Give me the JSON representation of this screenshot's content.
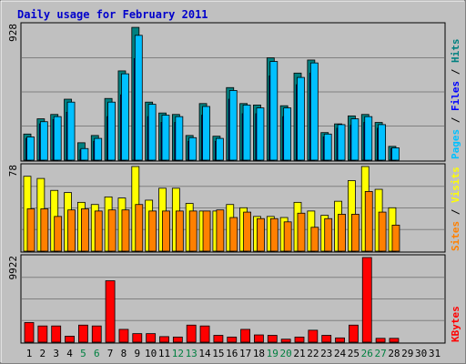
{
  "title": "Daily usage for February 2011",
  "colors": {
    "title": "#0000cc",
    "background": "#c0c0c0",
    "border_dark": "#808080",
    "grid": "#808080",
    "hits_fill": "#008080",
    "files_fill": "#0000ff",
    "pages_fill": "#00c0ff",
    "visits_fill": "#ffff00",
    "sites_fill": "#ff8000",
    "kbytes_fill": "#ff0000",
    "weekend_label": "#008040",
    "weekday_label": "#000000"
  },
  "chart_data": [
    {
      "type": "bar",
      "categories": [
        "1",
        "2",
        "3",
        "4",
        "5",
        "6",
        "7",
        "8",
        "9",
        "10",
        "11",
        "12",
        "13",
        "14",
        "15",
        "16",
        "17",
        "18",
        "19",
        "20",
        "21",
        "22",
        "23",
        "24",
        "25",
        "26",
        "27",
        "28",
        "29",
        "30",
        "31"
      ],
      "weekend_days": [
        5,
        6,
        12,
        13,
        19,
        20,
        26,
        27
      ],
      "ylabel_max": "928",
      "legend": [
        {
          "label": "Pages",
          "color": "#00c0ff"
        },
        {
          "label": "Files",
          "color": "#0000ff"
        },
        {
          "label": "Hits",
          "color": "#008080"
        }
      ],
      "ylim": [
        0,
        928
      ],
      "series": [
        {
          "name": "Hits",
          "values": [
            180,
            285,
            315,
            420,
            120,
            170,
            425,
            615,
            915,
            400,
            325,
            315,
            170,
            390,
            165,
            500,
            390,
            380,
            705,
            375,
            600,
            690,
            190,
            250,
            305,
            315,
            260,
            95,
            0,
            0,
            0
          ]
        },
        {
          "name": "Files",
          "values": [
            150,
            250,
            280,
            330,
            70,
            130,
            300,
            450,
            700,
            300,
            260,
            260,
            130,
            310,
            130,
            420,
            320,
            320,
            580,
            300,
            520,
            600,
            160,
            220,
            240,
            260,
            220,
            80,
            0,
            0,
            0
          ]
        },
        {
          "name": "Pages",
          "values": [
            160,
            265,
            300,
            400,
            80,
            150,
            400,
            595,
            860,
            385,
            310,
            300,
            155,
            370,
            150,
            480,
            380,
            360,
            680,
            360,
            570,
            670,
            180,
            245,
            285,
            300,
            245,
            85,
            0,
            0,
            0
          ]
        }
      ]
    },
    {
      "type": "bar",
      "categories": [
        "1",
        "2",
        "3",
        "4",
        "5",
        "6",
        "7",
        "8",
        "9",
        "10",
        "11",
        "12",
        "13",
        "14",
        "15",
        "16",
        "17",
        "18",
        "19",
        "20",
        "21",
        "22",
        "23",
        "24",
        "25",
        "26",
        "27",
        "28",
        "29",
        "30",
        "31"
      ],
      "ylabel_max": "78",
      "legend": [
        {
          "label": "Sites",
          "color": "#ff8000"
        },
        {
          "label": "Visits",
          "color": "#ffff00"
        }
      ],
      "ylim": [
        0,
        78
      ],
      "series": [
        {
          "name": "Visits",
          "values": [
            69,
            67,
            56,
            54,
            45,
            43,
            50,
            49,
            78,
            47,
            58,
            58,
            44,
            37,
            37,
            43,
            40,
            32,
            32,
            31,
            45,
            37,
            33,
            46,
            65,
            78,
            57,
            40,
            0,
            0,
            0
          ]
        },
        {
          "name": "Sites",
          "values": [
            39,
            39,
            32,
            38,
            39,
            37,
            38,
            38,
            43,
            37,
            37,
            37,
            37,
            37,
            38,
            31,
            36,
            30,
            30,
            27,
            35,
            22,
            30,
            34,
            34,
            55,
            36,
            24,
            0,
            0,
            0
          ]
        }
      ]
    },
    {
      "type": "bar",
      "categories": [
        "1",
        "2",
        "3",
        "4",
        "5",
        "6",
        "7",
        "8",
        "9",
        "10",
        "11",
        "12",
        "13",
        "14",
        "15",
        "16",
        "17",
        "18",
        "19",
        "20",
        "21",
        "22",
        "23",
        "24",
        "25",
        "26",
        "27",
        "28",
        "29",
        "30",
        "31"
      ],
      "ylabel_max": "9922",
      "legend": [
        {
          "label": "KBytes",
          "color": "#ff0000"
        }
      ],
      "ylim": [
        0,
        9922
      ],
      "series": [
        {
          "name": "KBytes",
          "values": [
            2300,
            1900,
            1900,
            700,
            2000,
            1900,
            7200,
            1500,
            1000,
            1000,
            650,
            600,
            2000,
            1900,
            800,
            600,
            1500,
            850,
            800,
            350,
            600,
            1400,
            800,
            500,
            2000,
            9922,
            450,
            450,
            0,
            0,
            0
          ]
        }
      ]
    }
  ]
}
